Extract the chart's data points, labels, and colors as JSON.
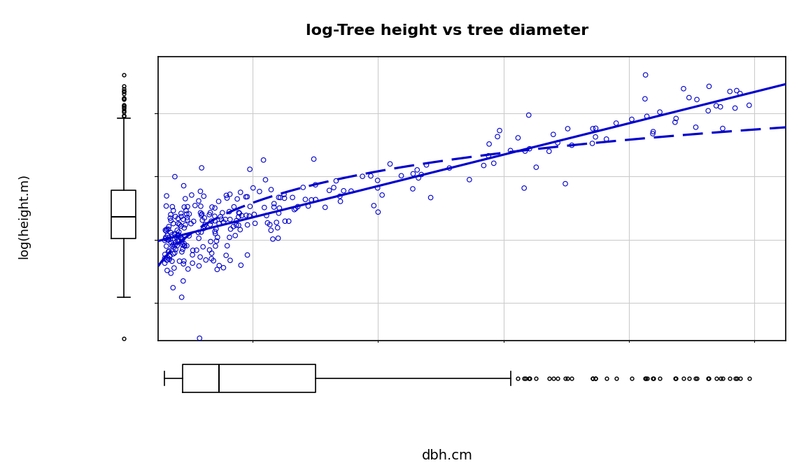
{
  "title": "log-Tree height vs tree diameter",
  "xlabel": "dbh.cm",
  "ylabel": "log(height.m)",
  "xlim": [
    5,
    105
  ],
  "ylim": [
    1.7,
    3.95
  ],
  "xticks": [
    20,
    40,
    60,
    80,
    100
  ],
  "yticks": [
    2.0,
    2.5,
    3.0,
    3.5
  ],
  "scatter_color": "#0000CD",
  "line_color": "#0000CD",
  "background": "#ffffff",
  "grid_color": "#cccccc",
  "seed": 42,
  "n_points": 300
}
